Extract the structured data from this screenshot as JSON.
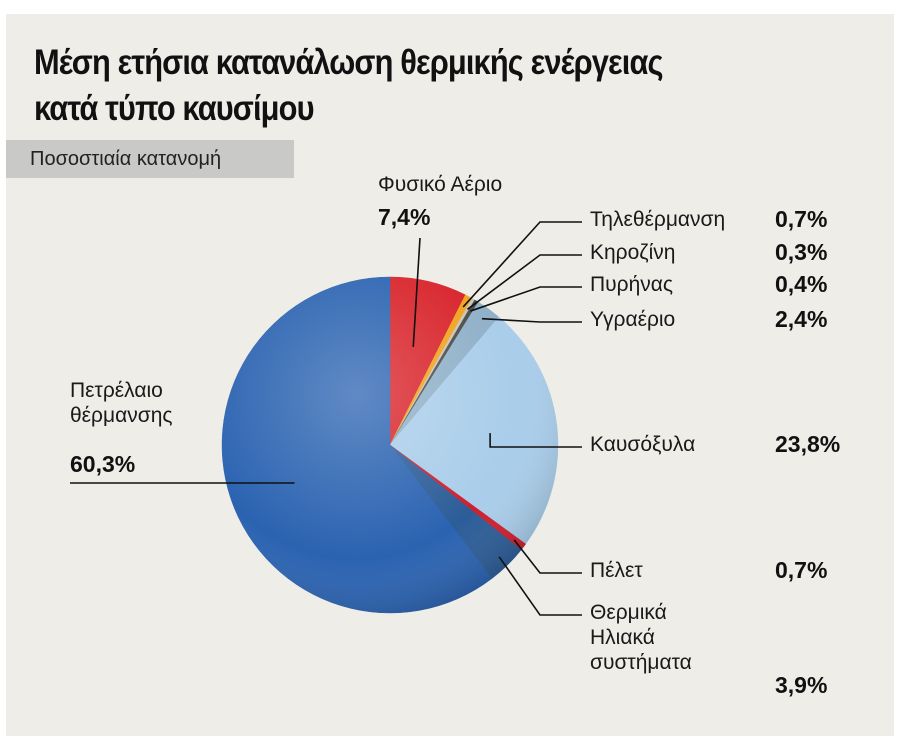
{
  "chart_data": {
    "type": "pie",
    "title": "Μέση ετήσια κατανάλωση θερμικής ενέργειας\nκατά τύπο καυσίμου",
    "subtitle": "Ποσοστιαία κατανομή",
    "categories": [
      "Φυσικό Αέριο",
      "Τηλεθέρμανση",
      "Κηροζίνη",
      "Πυρήνας",
      "Υγραέριο",
      "Καυσόξυλα",
      "Πέλετ",
      "Θερμικά\nΗλιακά\nσυστήματα",
      "Πετρέλαιο\nθέρμανσης"
    ],
    "values": [
      7.4,
      0.7,
      0.3,
      0.4,
      2.4,
      23.8,
      0.7,
      3.9,
      60.3
    ],
    "value_labels": [
      "7,4%",
      "0,7%",
      "0,3%",
      "0,4%",
      "2,4%",
      "23,8%",
      "0,7%",
      "3,9%",
      "60,3%"
    ],
    "colors": [
      "#d8232a",
      "#f2a21c",
      "#c9c4b8",
      "#4a4a4a",
      "#8fb0c8",
      "#a9cdea",
      "#cf1f2e",
      "#2c5d98",
      "#2b63b1"
    ]
  }
}
